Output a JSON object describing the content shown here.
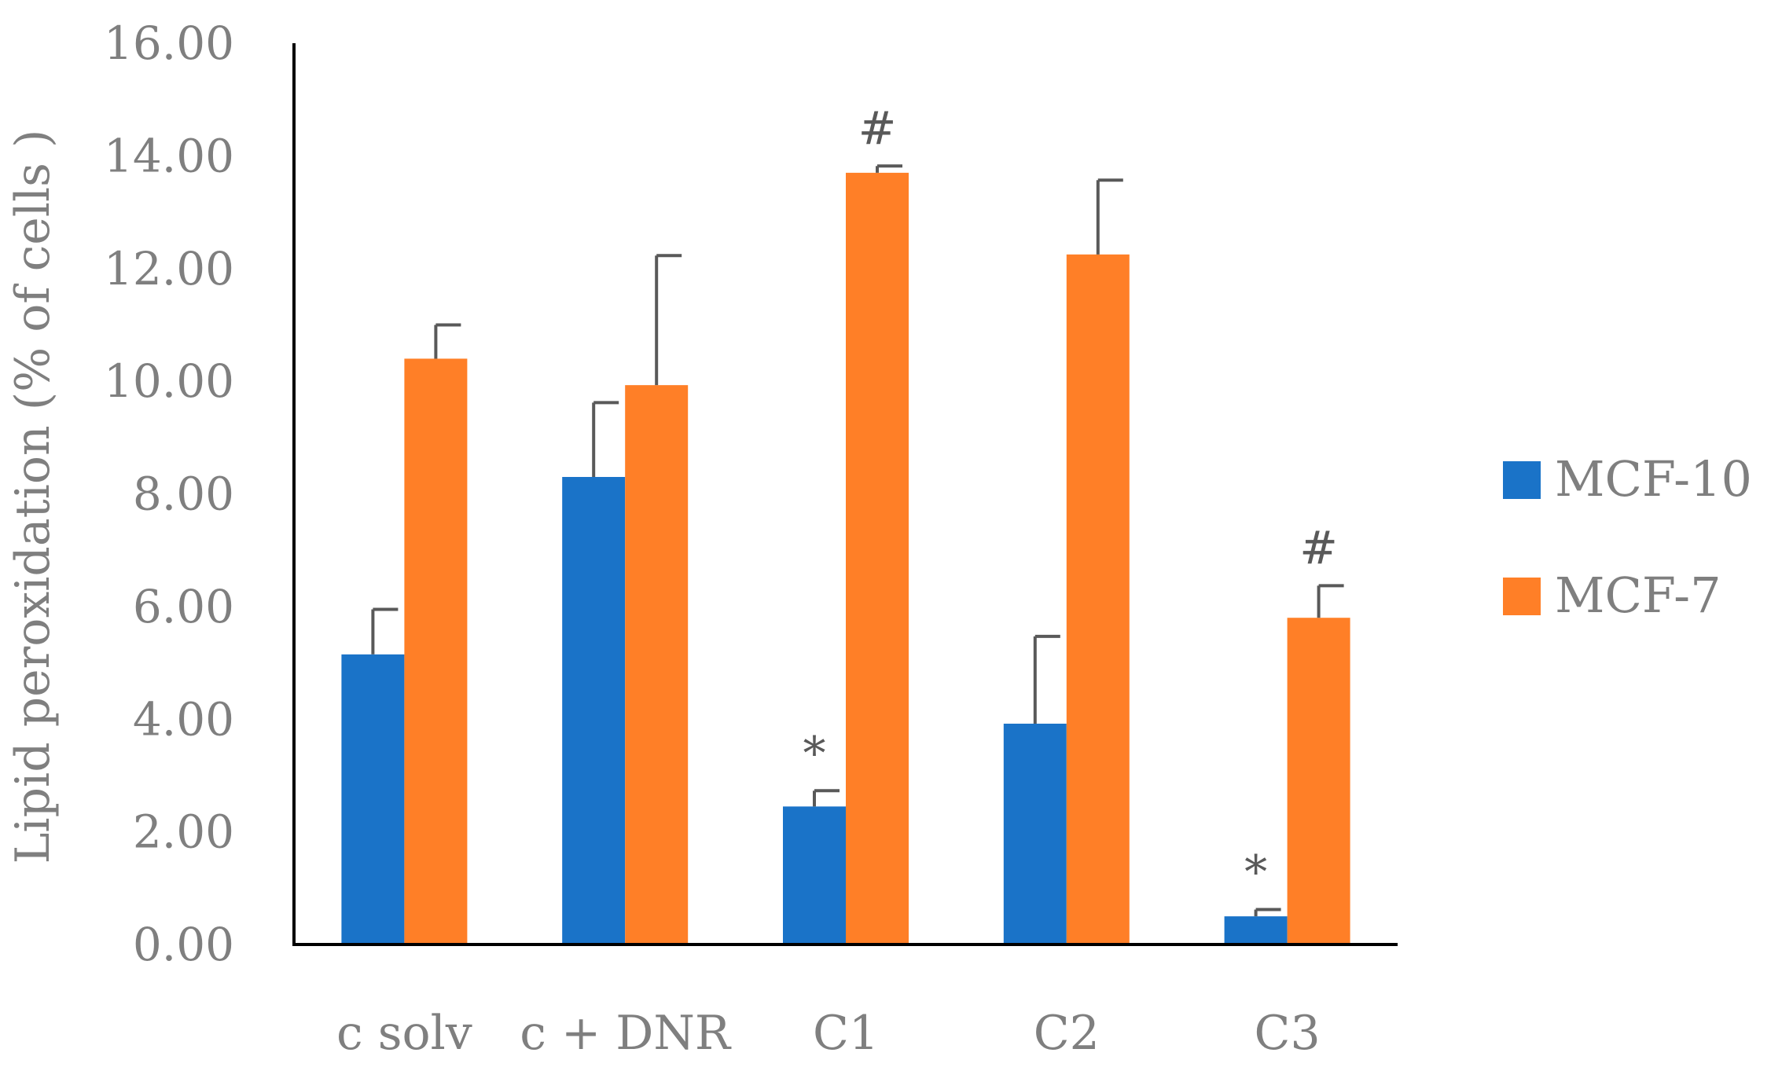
{
  "chart_data": {
    "type": "bar",
    "title": "",
    "xlabel": "",
    "ylabel": "Lipid peroxidation (% of cells )",
    "ylim": [
      0,
      16
    ],
    "yticks": [
      "0.00",
      "2.00",
      "4.00",
      "6.00",
      "8.00",
      "10.00",
      "12.00",
      "14.00",
      "16.00"
    ],
    "categories": [
      "c solv",
      "c + DNR",
      "C1",
      "C2",
      "C3"
    ],
    "series": [
      {
        "name": "MCF-10",
        "color": "#1a73c8",
        "values": [
          5.15,
          8.3,
          2.45,
          3.92,
          0.5
        ],
        "errors": [
          0.8,
          1.32,
          0.28,
          1.55,
          0.12
        ],
        "annotations": [
          "",
          "",
          "*",
          "",
          "*"
        ]
      },
      {
        "name": "MCF-7",
        "color": "#ff7f27",
        "values": [
          10.4,
          9.93,
          13.7,
          12.25,
          5.8
        ],
        "errors": [
          0.6,
          2.3,
          0.12,
          1.32,
          0.57
        ],
        "annotations": [
          "",
          "",
          "#",
          "",
          "#"
        ]
      }
    ],
    "legend_position": "right",
    "grid": false
  }
}
